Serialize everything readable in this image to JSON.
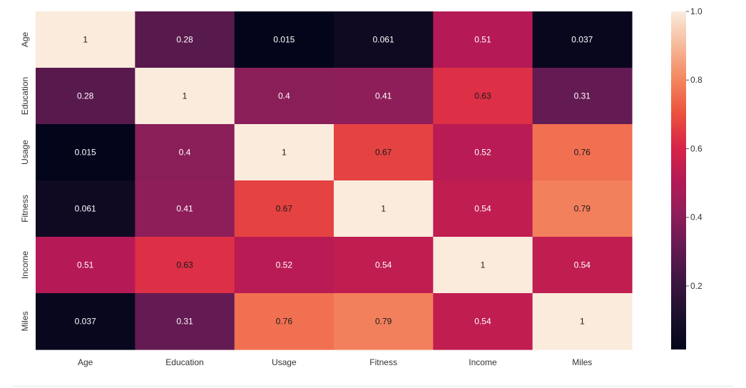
{
  "chart_data": {
    "type": "heatmap",
    "title": "",
    "xlabel": "",
    "ylabel": "",
    "x_categories": [
      "Age",
      "Education",
      "Usage",
      "Fitness",
      "Income",
      "Miles"
    ],
    "y_categories": [
      "Age",
      "Education",
      "Usage",
      "Fitness",
      "Income",
      "Miles"
    ],
    "values": [
      [
        1,
        0.28,
        0.015,
        0.061,
        0.51,
        0.037
      ],
      [
        0.28,
        1,
        0.4,
        0.41,
        0.63,
        0.31
      ],
      [
        0.015,
        0.4,
        1,
        0.67,
        0.52,
        0.76
      ],
      [
        0.061,
        0.41,
        0.67,
        1,
        0.54,
        0.79
      ],
      [
        0.51,
        0.63,
        0.52,
        0.54,
        1,
        0.54
      ],
      [
        0.037,
        0.31,
        0.76,
        0.79,
        0.54,
        1
      ]
    ],
    "cell_labels": [
      [
        "1",
        "0.28",
        "0.015",
        "0.061",
        "0.51",
        "0.037"
      ],
      [
        "0.28",
        "1",
        "0.4",
        "0.41",
        "0.63",
        "0.31"
      ],
      [
        "0.015",
        "0.4",
        "1",
        "0.67",
        "0.52",
        "0.76"
      ],
      [
        "0.061",
        "0.41",
        "0.67",
        "1",
        "0.54",
        "0.79"
      ],
      [
        "0.51",
        "0.63",
        "0.52",
        "0.54",
        "1",
        "0.54"
      ],
      [
        "0.037",
        "0.31",
        "0.76",
        "0.79",
        "0.54",
        "1"
      ]
    ],
    "colorbar": {
      "colormap": "rocket",
      "range": [
        0.015,
        1.0
      ],
      "ticks": [
        0.2,
        0.4,
        0.6,
        0.8,
        1.0
      ],
      "tick_labels": [
        "0.2",
        "0.4",
        "0.6",
        "0.8",
        "1.0"
      ]
    },
    "grid": false,
    "legend": "colorbar-right"
  }
}
